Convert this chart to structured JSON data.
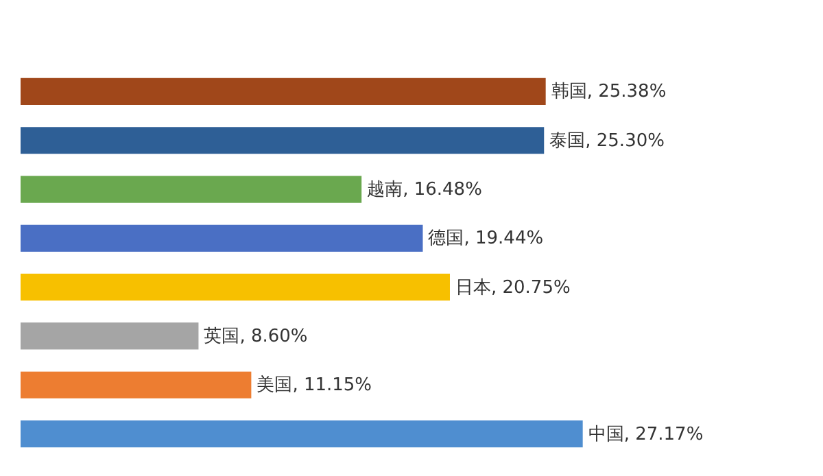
{
  "chart_data": {
    "type": "bar",
    "orientation": "horizontal",
    "categories": [
      null,
      null,
      null,
      null,
      null,
      null,
      null,
      null
    ],
    "values": [
      25.38,
      25.3,
      16.48,
      19.44,
      20.75,
      8.6,
      11.15,
      27.17
    ],
    "value_labels": [
      "韩国, 25.38%",
      "泰国, 25.30%",
      "越南, 16.48%",
      "德国, 19.44%",
      "日本, 20.75%",
      "英国, 8.60%",
      "美国, 11.15%",
      "中国, 27.17%"
    ],
    "colors": [
      "#a0471a",
      "#2e5f96",
      "#6aa84f",
      "#4a6fc4",
      "#f7c000",
      "#a5a5a5",
      "#ed7d31",
      "#4f8ed0"
    ]
  }
}
